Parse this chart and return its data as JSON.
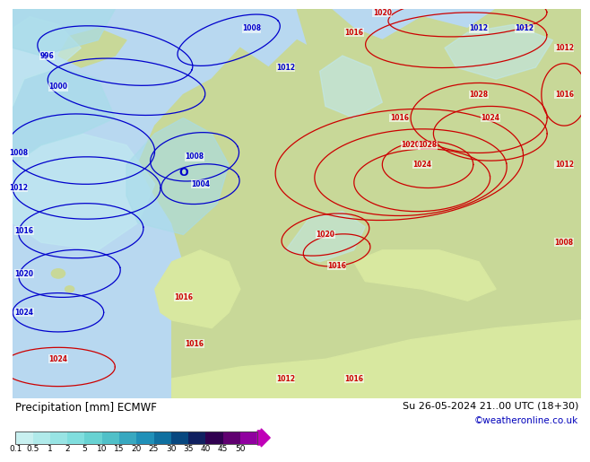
{
  "title_left": "Precipitation [mm] ECMWF",
  "title_right": "Su 26-05-2024 21..00 UTC (18+30)",
  "credit": "©weatheronline.co.uk",
  "colorbar_labels": [
    "0.1",
    "0.5",
    "1",
    "2",
    "5",
    "10",
    "15",
    "20",
    "25",
    "30",
    "35",
    "40",
    "45",
    "50"
  ],
  "cb_colors": [
    "#c8f0f0",
    "#b0eaea",
    "#98e4e4",
    "#80dede",
    "#68d2d2",
    "#50c0c8",
    "#38a8c0",
    "#2090b8",
    "#1070a0",
    "#084880",
    "#102060",
    "#300050",
    "#600070",
    "#9000a0",
    "#c000b8",
    "#e800d0"
  ],
  "ocean_color": "#b8d8f0",
  "land_green": "#c8d898",
  "land_yellow": "#d8e8a0",
  "precip_light1": "#c0e8f0",
  "precip_light2": "#a8dcea",
  "precip_med": "#7cc8e0",
  "precip_dark": "#4490c0",
  "bg_white": "#ffffff",
  "blue_line": "#0000cc",
  "red_line": "#cc0000",
  "text_black": "#000000",
  "text_blue_credit": "#0000bb",
  "figw": 6.34,
  "figh": 4.9
}
